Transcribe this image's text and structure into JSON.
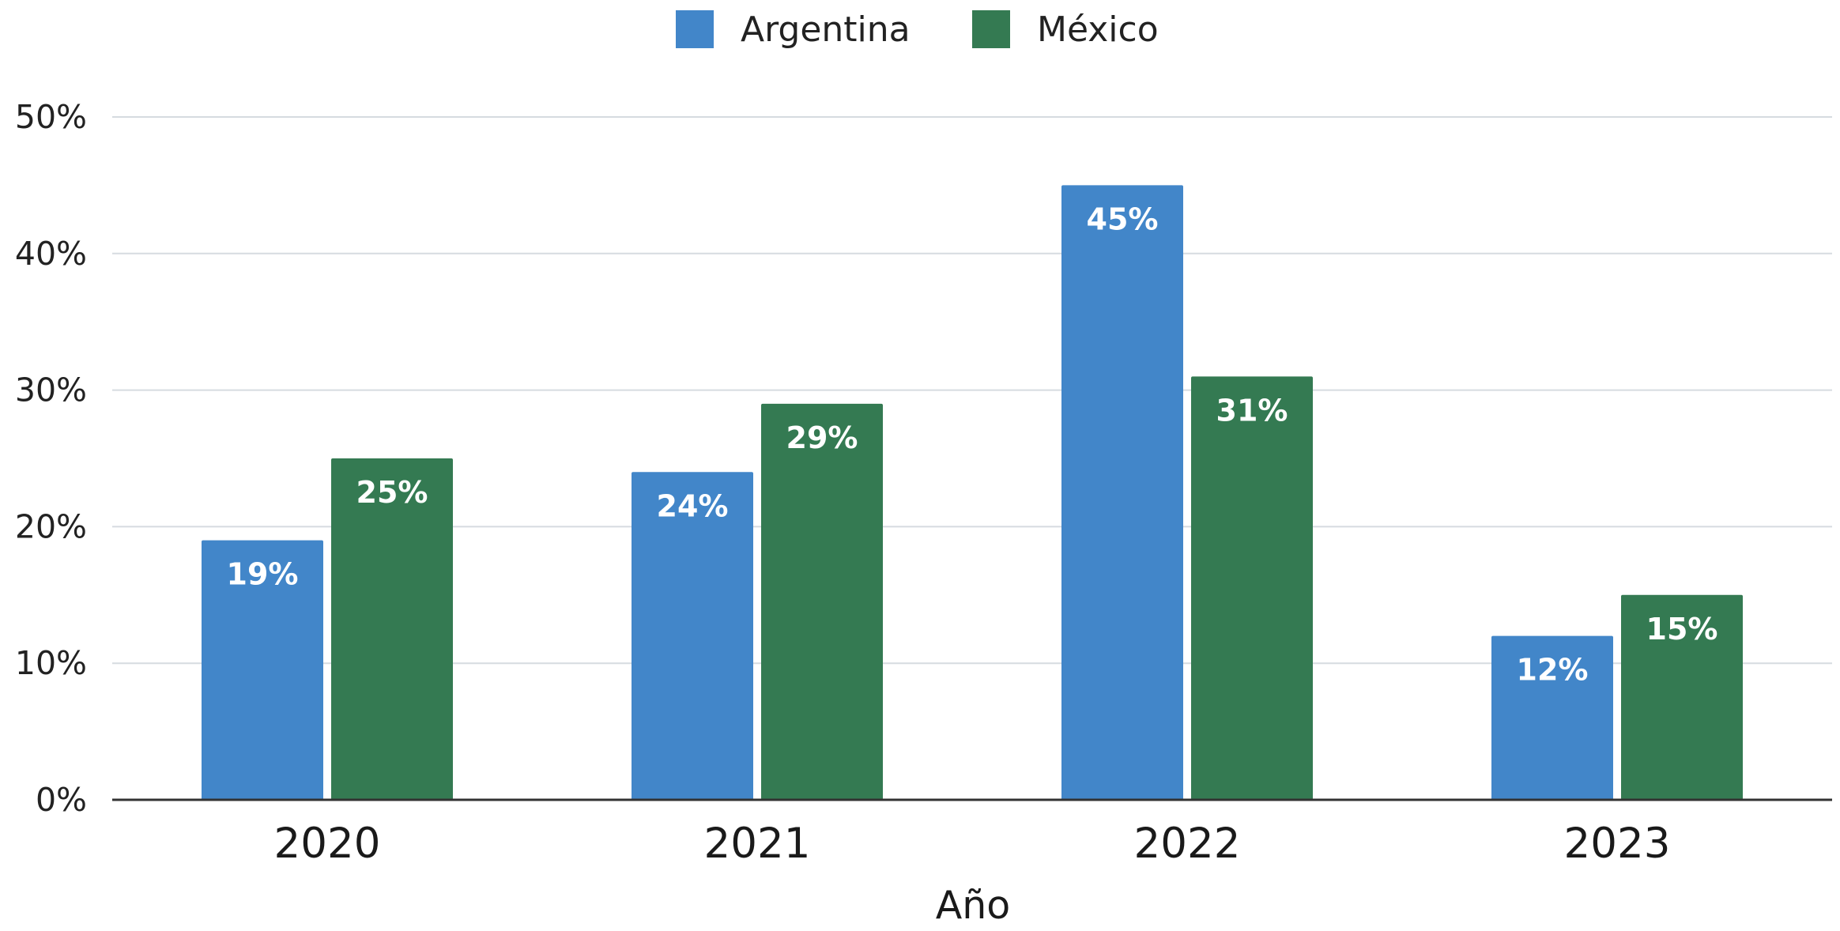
{
  "chart_data": {
    "type": "bar",
    "title": "",
    "xlabel": "Año",
    "ylabel": "",
    "categories": [
      "2020",
      "2021",
      "2022",
      "2023"
    ],
    "series": [
      {
        "name": "Argentina",
        "color": "#4286c9",
        "values": [
          19,
          24,
          45,
          12
        ],
        "labels": [
          "19%",
          "24%",
          "45%",
          "12%"
        ]
      },
      {
        "name": "México",
        "color": "#347a52",
        "values": [
          25,
          29,
          31,
          15
        ],
        "labels": [
          "25%",
          "29%",
          "31%",
          "15%"
        ]
      }
    ],
    "ylim": [
      0,
      50
    ],
    "yticks": [
      0,
      10,
      20,
      30,
      40,
      50
    ],
    "ytick_labels": [
      "0%",
      "10%",
      "20%",
      "30%",
      "40%",
      "50%"
    ],
    "grid": true,
    "legend_position": "top-center"
  }
}
